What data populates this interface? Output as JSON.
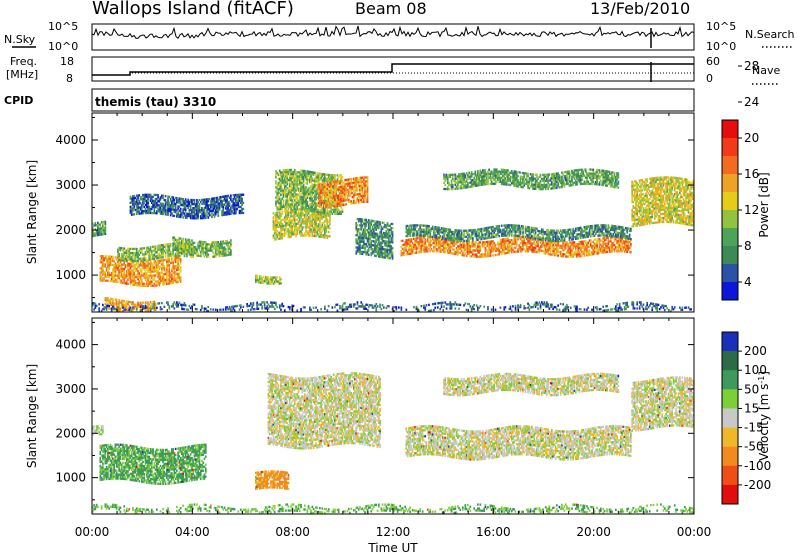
{
  "header": {
    "title": "Wallops Island (fitACF)",
    "beam": "Beam 08",
    "date": "13/Feb/2010"
  },
  "status_panels": {
    "nsky": {
      "label": "N.Sky",
      "scale_top": "10^5",
      "scale_bottom": "10^0"
    },
    "nsearch": {
      "label": "N.Search",
      "scale_top": "10^5",
      "scale_bottom": "10^0"
    },
    "freq": {
      "label_line1": "Freq.",
      "label_line2": "[MHz]",
      "tick_top": "18",
      "tick_bottom": "8"
    },
    "nave": {
      "label": "Nave",
      "tick_top": "60",
      "tick_bottom": "0"
    },
    "cpid": {
      "label": "CPID",
      "text": "themis (tau) 3310"
    }
  },
  "chart_data": [
    {
      "type": "heatmap",
      "title": "",
      "xlabel": "Time UT",
      "ylabel": "Slant Range [km]",
      "x_ticks": [
        "00:00",
        "04:00",
        "08:00",
        "12:00",
        "16:00",
        "20:00",
        "00:00"
      ],
      "y_ticks": [
        1000,
        2000,
        3000,
        4000
      ],
      "xlim_hours": [
        0,
        24
      ],
      "ylim_km": [
        180,
        4600
      ],
      "colorbar": {
        "label": "Power [dB]",
        "ticks": [
          "4",
          "8",
          "12",
          "16",
          "20",
          "24",
          "28"
        ],
        "colors": [
          "#0a17d8",
          "#2a52a6",
          "#3e8a57",
          "#4da35a",
          "#93c23e",
          "#e6cc1a",
          "#f0a227",
          "#f26b21",
          "#f13a19",
          "#e50d0d"
        ]
      },
      "echo_bands": [
        {
          "t0": 0.0,
          "t1": 0.5,
          "r0": 1850,
          "r1": 2150,
          "p": 10
        },
        {
          "t0": 0.3,
          "t1": 3.5,
          "r0": 800,
          "r1": 1350,
          "p": 21
        },
        {
          "t0": 1.0,
          "t1": 4.0,
          "r0": 1350,
          "r1": 1650,
          "p": 13
        },
        {
          "t0": 3.2,
          "t1": 5.5,
          "r0": 1450,
          "r1": 1800,
          "p": 12
        },
        {
          "t0": 1.5,
          "t1": 6.0,
          "r0": 2300,
          "r1": 2750,
          "p": 6
        },
        {
          "t0": 6.5,
          "t1": 7.5,
          "r0": 850,
          "r1": 1000,
          "p": 14
        },
        {
          "t0": 7.2,
          "t1": 9.5,
          "r0": 1800,
          "r1": 2400,
          "p": 16
        },
        {
          "t0": 7.3,
          "t1": 10.0,
          "r0": 2400,
          "r1": 3300,
          "p": 13
        },
        {
          "t0": 9.0,
          "t1": 11.0,
          "r0": 2550,
          "r1": 3100,
          "p": 22
        },
        {
          "t0": 10.5,
          "t1": 12.0,
          "r0": 1400,
          "r1": 2200,
          "p": 9
        },
        {
          "t0": 12.3,
          "t1": 21.5,
          "r0": 1450,
          "r1": 1800,
          "p": 22
        },
        {
          "t0": 12.5,
          "t1": 21.5,
          "r0": 1800,
          "r1": 2050,
          "p": 9
        },
        {
          "t0": 14.0,
          "t1": 21.0,
          "r0": 2950,
          "r1": 3300,
          "p": 11
        },
        {
          "t0": 21.5,
          "t1": 24.0,
          "r0": 2100,
          "r1": 3100,
          "p": 17
        },
        {
          "t0": 0.5,
          "t1": 2.5,
          "r0": 200,
          "r1": 450,
          "p": 20
        },
        {
          "t0": 0.0,
          "t1": 24.0,
          "r0": 180,
          "r1": 330,
          "p": 6
        }
      ]
    },
    {
      "type": "heatmap",
      "title": "",
      "xlabel": "Time UT",
      "ylabel": "Slant Range [km]",
      "x_ticks": [
        "00:00",
        "04:00",
        "08:00",
        "12:00",
        "16:00",
        "20:00",
        "00:00"
      ],
      "y_ticks": [
        1000,
        2000,
        3000,
        4000
      ],
      "xlim_hours": [
        0,
        24
      ],
      "ylim_km": [
        180,
        4600
      ],
      "colorbar": {
        "label": "Velocity [m s^-1]",
        "ticks": [
          "200",
          "100",
          "50",
          "15",
          "-15",
          "-50",
          "-100",
          "-200"
        ],
        "colors": [
          "#1c2fb8",
          "#2c6a48",
          "#3d9a5a",
          "#7dcf3a",
          "#c8c8c8",
          "#efb82a",
          "#f28b1f",
          "#ef4e17",
          "#e20e0e"
        ]
      },
      "echo_bands": [
        {
          "t0": 0.3,
          "t1": 4.5,
          "r0": 900,
          "r1": 1700,
          "v": 40
        },
        {
          "t0": 0.0,
          "t1": 0.4,
          "r0": 1900,
          "r1": 2100,
          "v": 10
        },
        {
          "t0": 6.5,
          "t1": 7.8,
          "r0": 700,
          "r1": 1100,
          "v": -40
        },
        {
          "t0": 7.0,
          "t1": 11.5,
          "r0": 1700,
          "r1": 3300,
          "v": 0
        },
        {
          "t0": 12.5,
          "t1": 21.5,
          "r0": 1450,
          "r1": 2100,
          "v": 0
        },
        {
          "t0": 14.0,
          "t1": 21.0,
          "r0": 2900,
          "r1": 3300,
          "v": 0
        },
        {
          "t0": 21.5,
          "t1": 24.0,
          "r0": 2100,
          "r1": 3200,
          "v": 0
        },
        {
          "t0": 0.0,
          "t1": 24.0,
          "r0": 180,
          "r1": 330,
          "v": 30
        }
      ]
    }
  ]
}
